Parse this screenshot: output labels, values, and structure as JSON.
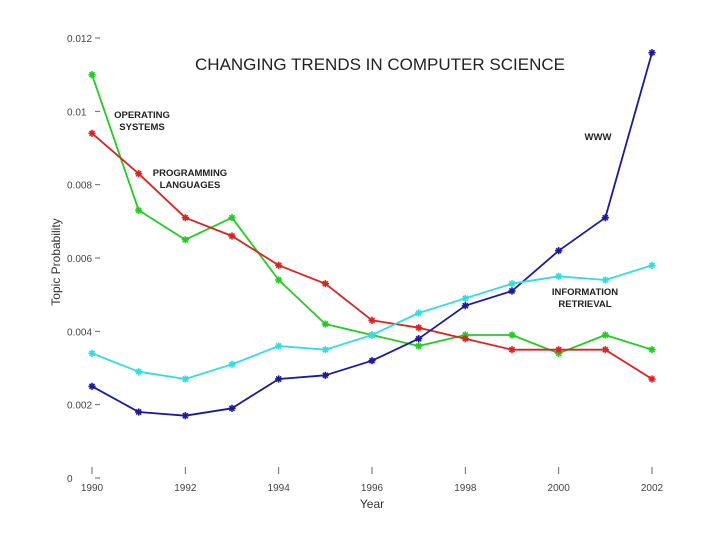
{
  "chart_data": {
    "type": "line",
    "title": "CHANGING TRENDS IN COMPUTER SCIENCE",
    "xlabel": "Year",
    "ylabel": "Topic Probability",
    "xlim": [
      1990,
      2002
    ],
    "ylim": [
      0,
      0.012
    ],
    "x_ticks": [
      "1990",
      "1992",
      "1994",
      "1996",
      "1998",
      "2000",
      "2002"
    ],
    "y_ticks": [
      "0",
      "0.002",
      "0.004",
      "0.006",
      "0.008",
      "0.01",
      "0.012"
    ],
    "x": [
      1990,
      1991,
      1992,
      1993,
      1994,
      1995,
      1996,
      1997,
      1998,
      1999,
      2000,
      2001,
      2002
    ],
    "series": [
      {
        "name": "OPERATING SYSTEMS",
        "color": "#22cc22",
        "values": [
          0.011,
          0.0073,
          0.0065,
          0.0071,
          0.0054,
          0.0042,
          0.0039,
          0.0036,
          0.0039,
          0.0039,
          0.0034,
          0.0039,
          0.0035
        ]
      },
      {
        "name": "PROGRAMMING LANGUAGES",
        "color": "#dd2222",
        "values": [
          0.0094,
          0.0083,
          0.0071,
          0.0066,
          0.0058,
          0.0053,
          0.0043,
          0.0041,
          0.0038,
          0.0035,
          0.0035,
          0.0035,
          0.0027
        ]
      },
      {
        "name": "WWW",
        "color": "#1a1aa0",
        "values": [
          0.0025,
          0.0018,
          0.0017,
          0.0019,
          0.0027,
          0.0028,
          0.0032,
          0.0038,
          0.0047,
          0.0051,
          0.0062,
          0.0071,
          0.0116
        ]
      },
      {
        "name": "INFORMATION RETRIEVAL",
        "color": "#33dddd",
        "values": [
          0.0034,
          0.0029,
          0.0027,
          0.0031,
          0.0036,
          0.0035,
          0.0039,
          0.0045,
          0.0049,
          0.0053,
          0.0055,
          0.0054,
          0.0058
        ]
      }
    ],
    "annotations": [
      {
        "lines": [
          "OPERATING",
          "SYSTEMS"
        ],
        "series": "OPERATING SYSTEMS"
      },
      {
        "lines": [
          "PROGRAMMING",
          "LANGUAGES"
        ],
        "series": "PROGRAMMING LANGUAGES"
      },
      {
        "lines": [
          "WWW"
        ],
        "series": "WWW"
      },
      {
        "lines": [
          "INFORMATION",
          "RETRIEVAL"
        ],
        "series": "INFORMATION RETRIEVAL"
      }
    ],
    "grid": false,
    "legend": "none"
  }
}
